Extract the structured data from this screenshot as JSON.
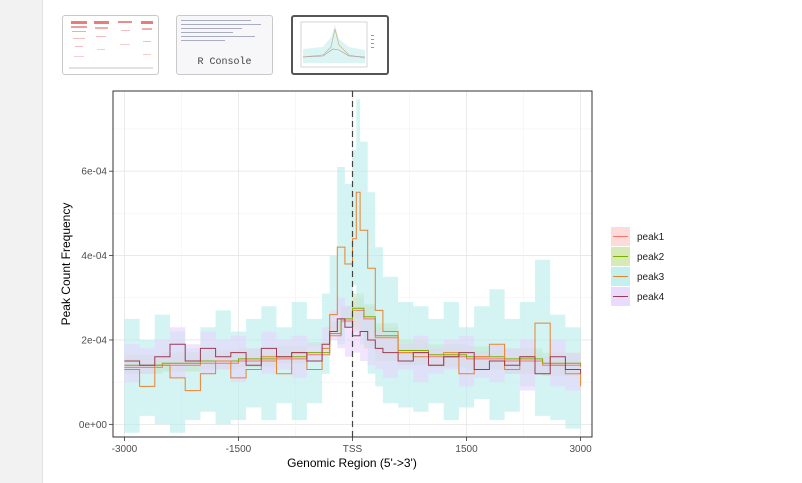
{
  "thumbnails": [
    {
      "name": "raster-heatmap-thumbnail",
      "caption": ""
    },
    {
      "name": "r-console-thumbnail",
      "caption": "R Console"
    },
    {
      "name": "profile-plot-thumbnail",
      "caption": ""
    }
  ],
  "colors": {
    "peak1": "#f8766d",
    "peak2": "#7cae00",
    "peak3": "#e8822e",
    "peak4": "#9d3a52",
    "band_peak1": "#fbd5d3",
    "band_peak2": "#cfe6a8",
    "band_peak3": "#b8ecec",
    "band_peak4": "#e6d4fa",
    "tss_line": "#444444"
  },
  "chart_data": {
    "type": "line",
    "title": "",
    "xlabel": "Genomic Region (5'->3')",
    "ylabel": "Peak Count Frequency",
    "xlim": [
      -3150,
      3150
    ],
    "ylim": [
      -3e-05,
      0.00079
    ],
    "x_ticks": [
      -3000,
      -1500,
      0,
      1500,
      3000
    ],
    "x_tick_labels": [
      "-3000",
      "-1500",
      "TSS",
      "1500",
      "3000"
    ],
    "y_ticks": [
      0,
      0.0002,
      0.0004,
      0.0006
    ],
    "y_tick_labels": [
      "0e+00",
      "2e-04",
      "4e-04",
      "6e-04"
    ],
    "vline_x": 0,
    "grid": true,
    "legend_position": "right",
    "series": [
      {
        "name": "peak1",
        "x": [
          -3000,
          -2500,
          -2000,
          -1500,
          -1000,
          -600,
          -300,
          -150,
          0,
          150,
          300,
          600,
          1000,
          1500,
          2000,
          2500,
          3000
        ],
        "values": [
          0.000135,
          0.00014,
          0.000145,
          0.00015,
          0.000155,
          0.000165,
          0.00021,
          0.000245,
          0.00027,
          0.00025,
          0.000205,
          0.00017,
          0.00016,
          0.000155,
          0.00015,
          0.00014,
          0.000135
        ],
        "band_halfwidth": [
          2e-05,
          2e-05,
          2e-05,
          2e-05,
          2e-05,
          2e-05,
          2.5e-05,
          3e-05,
          3e-05,
          3e-05,
          2.5e-05,
          2e-05,
          2e-05,
          2e-05,
          2e-05,
          2e-05,
          2e-05
        ]
      },
      {
        "name": "peak2",
        "x": [
          -3000,
          -2500,
          -2000,
          -1500,
          -1000,
          -600,
          -300,
          -150,
          0,
          150,
          300,
          600,
          1000,
          1500,
          2000,
          2500,
          3000
        ],
        "values": [
          0.00014,
          0.000145,
          0.00015,
          0.000155,
          0.00016,
          0.00017,
          0.000215,
          0.00025,
          0.000275,
          0.000255,
          0.00021,
          0.000175,
          0.000165,
          0.00016,
          0.000155,
          0.000145,
          0.00014
        ],
        "band_halfwidth": [
          2.5e-05,
          2.5e-05,
          2.5e-05,
          2.5e-05,
          2.5e-05,
          2.5e-05,
          3e-05,
          3e-05,
          3.5e-05,
          3e-05,
          3e-05,
          2.5e-05,
          2.5e-05,
          2.5e-05,
          2.5e-05,
          2.5e-05,
          2.5e-05
        ]
      },
      {
        "name": "peak3",
        "x": [
          -3000,
          -2800,
          -2600,
          -2400,
          -2200,
          -2000,
          -1800,
          -1600,
          -1400,
          -1200,
          -1000,
          -800,
          -600,
          -400,
          -300,
          -200,
          -100,
          0,
          50,
          100,
          200,
          300,
          400,
          600,
          800,
          1000,
          1200,
          1400,
          1600,
          1800,
          2000,
          2200,
          2400,
          2600,
          2800,
          3000
        ],
        "values": [
          0.00013,
          9e-05,
          0.00014,
          0.00011,
          8e-05,
          0.00012,
          0.00015,
          0.00011,
          0.00013,
          0.00016,
          0.00012,
          0.00017,
          0.00013,
          0.00018,
          0.00026,
          0.00042,
          0.00038,
          0.00044,
          0.00055,
          0.00046,
          0.00037,
          0.00027,
          0.00022,
          0.00017,
          0.00016,
          0.00014,
          0.00017,
          0.00012,
          0.00016,
          0.00019,
          0.00013,
          0.00016,
          0.00024,
          0.00014,
          0.00012,
          9e-05
        ],
        "band_halfwidth": [
          0.00012,
          0.00011,
          0.00012,
          0.00011,
          0.0001,
          0.00011,
          0.00012,
          0.00011,
          0.00012,
          0.00012,
          0.00011,
          0.00012,
          0.00012,
          0.00013,
          0.00014,
          0.00019,
          0.00019,
          0.00021,
          0.00022,
          0.00021,
          0.00018,
          0.00015,
          0.00013,
          0.00012,
          0.00012,
          0.00011,
          0.00012,
          0.00011,
          0.00012,
          0.00013,
          0.00012,
          0.00013,
          0.00015,
          0.00012,
          0.00011,
          0.0001
        ]
      },
      {
        "name": "peak4",
        "x": [
          -3000,
          -2800,
          -2600,
          -2400,
          -2200,
          -2000,
          -1800,
          -1600,
          -1400,
          -1200,
          -1000,
          -800,
          -600,
          -400,
          -300,
          -200,
          -100,
          0,
          100,
          200,
          300,
          400,
          600,
          800,
          1000,
          1200,
          1400,
          1600,
          1800,
          2000,
          2200,
          2400,
          2600,
          2800,
          3000
        ],
        "values": [
          0.00015,
          0.00014,
          0.00016,
          0.00019,
          0.00015,
          0.00018,
          0.00016,
          0.00017,
          0.00014,
          0.00018,
          0.00016,
          0.00017,
          0.00015,
          0.00019,
          0.00022,
          0.00025,
          0.00023,
          0.00021,
          0.00022,
          0.0002,
          0.00018,
          0.00017,
          0.00015,
          0.00017,
          0.00014,
          0.00016,
          0.00017,
          0.00013,
          0.00015,
          0.00014,
          0.00016,
          0.00012,
          0.00016,
          0.00013,
          0.00012
        ],
        "band_halfwidth": [
          4e-05,
          4e-05,
          4e-05,
          4e-05,
          4e-05,
          4e-05,
          4e-05,
          4e-05,
          4e-05,
          4e-05,
          4e-05,
          4e-05,
          4e-05,
          4e-05,
          5e-05,
          5e-05,
          5e-05,
          5e-05,
          5e-05,
          5e-05,
          4e-05,
          4e-05,
          4e-05,
          4e-05,
          4e-05,
          4e-05,
          4e-05,
          4e-05,
          4e-05,
          4e-05,
          4e-05,
          4e-05,
          4e-05,
          4e-05,
          4e-05
        ]
      }
    ]
  }
}
